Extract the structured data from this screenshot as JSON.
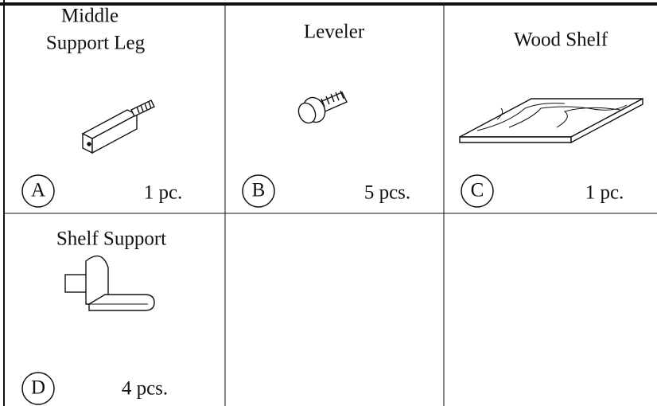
{
  "parts": [
    {
      "name_lines": [
        "Middle",
        "Support Leg"
      ],
      "letter": "A",
      "quantity": "1 pc."
    },
    {
      "name_lines": [
        "Leveler"
      ],
      "letter": "B",
      "quantity": "5 pcs."
    },
    {
      "name_lines": [
        "Wood Shelf"
      ],
      "letter": "C",
      "quantity": "1 pc."
    },
    {
      "name_lines": [
        "Shelf Support"
      ],
      "letter": "D",
      "quantity": "4 pcs."
    }
  ]
}
